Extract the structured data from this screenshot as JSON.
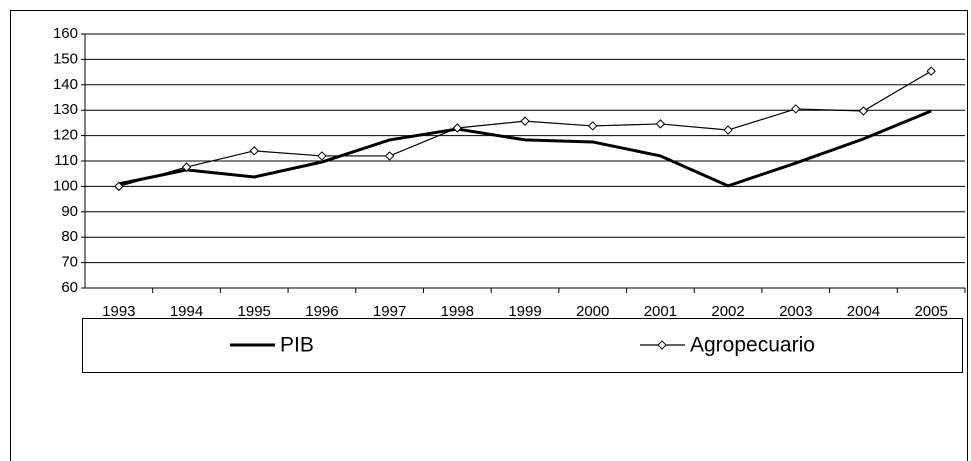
{
  "chart_data": {
    "type": "line",
    "categories": [
      "1993",
      "1994",
      "1995",
      "1996",
      "1997",
      "1998",
      "1999",
      "2000",
      "2001",
      "2002",
      "2003",
      "2004",
      "2005"
    ],
    "series": [
      {
        "name": "PIB",
        "color": "#000000",
        "values": [
          101,
          106.5,
          103.7,
          109.6,
          118.3,
          122.6,
          118.3,
          117.5,
          112,
          100.2,
          109.2,
          118.7,
          129.7
        ]
      },
      {
        "name": "Agropecuario",
        "color": "#000000",
        "values": [
          100,
          107.6,
          114,
          112,
          112,
          123,
          125.7,
          123.8,
          124.6,
          122.2,
          130.5,
          129.7,
          145.4
        ]
      }
    ],
    "ylim": [
      60,
      160
    ],
    "yticks": [
      60,
      70,
      80,
      90,
      100,
      110,
      120,
      130,
      140,
      150,
      160
    ],
    "grid": true,
    "legend": "bottom"
  }
}
